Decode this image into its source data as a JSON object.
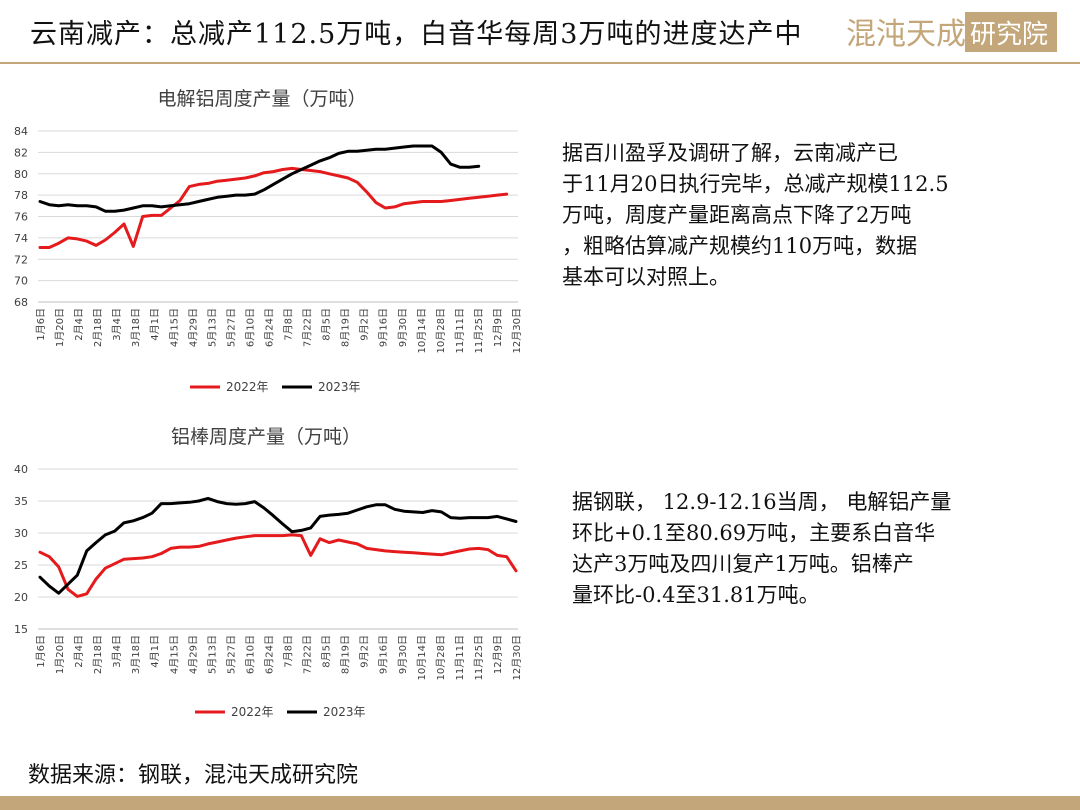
{
  "header": {
    "title": "云南减产：总减产112.5万吨，白音华每周3万吨的进度达产中",
    "logo_text": "混沌天成研究院"
  },
  "notes": {
    "note1": [
      "据百川盈孚及调研了解，云南减产已",
      "于11月20日执行完毕，总减产规模112.5",
      "万吨，周度产量距离高点下降了2万吨",
      "，粗略估算减产规模约110万吨，数据",
      "基本可以对照上。"
    ],
    "note2": [
      "据钢联， 12.9-12.16当周， 电解铝产量",
      "环比+0.1至80.69万吨，主要系白音华",
      "达产3万吨及四川复产1万吨。铝棒产",
      "量环比-0.4至31.81万吨。"
    ]
  },
  "source": "数据来源：钢联，混沌天成研究院",
  "colors": {
    "accent": "#c3a679",
    "series_2022": "#e41a1c",
    "series_2023": "#000000",
    "grid": "#d9d9d9"
  },
  "chart_data": [
    {
      "type": "line",
      "title": "电解铝周度产量（万吨）",
      "ylim": [
        68,
        84
      ],
      "yticks": [
        68,
        70,
        72,
        74,
        76,
        78,
        80,
        82,
        84
      ],
      "xticks": [
        "1月6日",
        "1月20日",
        "2月4日",
        "2月18日",
        "3月4日",
        "3月18日",
        "4月1日",
        "4月15日",
        "4月29日",
        "5月13日",
        "5月27日",
        "6月10日",
        "6月24日",
        "7月8日",
        "7月22日",
        "8月5日",
        "8月19日",
        "9月2日",
        "9月16日",
        "9月30日",
        "10月14日",
        "10月28日",
        "11月11日",
        "11月25日",
        "12月9日",
        "12月30日"
      ],
      "legend": "bottom",
      "grid": true,
      "series": [
        {
          "name": "2022年",
          "color": "#e41a1c",
          "values": [
            73.1,
            73.1,
            73.5,
            74.0,
            73.9,
            73.7,
            73.3,
            73.8,
            74.5,
            75.3,
            73.2,
            76.0,
            76.1,
            76.1,
            76.8,
            77.5,
            78.8,
            79.0,
            79.1,
            79.3,
            79.4,
            79.5,
            79.6,
            79.8,
            80.1,
            80.2,
            80.4,
            80.5,
            80.4,
            80.3,
            80.2,
            80.0,
            79.8,
            79.6,
            79.2,
            78.3,
            77.3,
            76.8,
            76.9,
            77.2,
            77.3,
            77.4,
            77.4,
            77.4,
            77.5,
            77.6,
            77.7,
            77.8,
            77.9,
            78.0,
            78.1
          ]
        },
        {
          "name": "2023年",
          "color": "#000000",
          "values": [
            77.4,
            77.1,
            77.0,
            77.1,
            77.0,
            77.0,
            76.9,
            76.5,
            76.5,
            76.6,
            76.8,
            77.0,
            77.0,
            76.9,
            77.0,
            77.1,
            77.2,
            77.4,
            77.6,
            77.8,
            77.9,
            78.0,
            78.0,
            78.1,
            78.5,
            79.0,
            79.5,
            80.0,
            80.4,
            80.8,
            81.2,
            81.5,
            81.9,
            82.1,
            82.1,
            82.2,
            82.3,
            82.3,
            82.4,
            82.5,
            82.6,
            82.6,
            82.6,
            82.0,
            80.9,
            80.6,
            80.6,
            80.7
          ]
        }
      ]
    },
    {
      "type": "line",
      "title": "铝棒周度产量（万吨）",
      "ylim": [
        15,
        40
      ],
      "yticks": [
        15,
        20,
        25,
        30,
        35,
        40
      ],
      "xticks": [
        "1月6日",
        "1月20日",
        "2月4日",
        "2月18日",
        "3月4日",
        "3月18日",
        "4月1日",
        "4月15日",
        "4月29日",
        "5月13日",
        "5月27日",
        "6月10日",
        "6月24日",
        "7月8日",
        "7月22日",
        "8月5日",
        "8月19日",
        "9月2日",
        "9月16日",
        "9月30日",
        "10月14日",
        "10月28日",
        "11月11日",
        "11月25日",
        "12月9日",
        "12月30日"
      ],
      "legend": "bottom",
      "grid": true,
      "series": [
        {
          "name": "2022年",
          "color": "#e41a1c",
          "values": [
            27.0,
            26.3,
            24.7,
            21.2,
            20.1,
            20.5,
            22.8,
            24.5,
            25.2,
            25.9,
            26.0,
            26.1,
            26.3,
            26.8,
            27.6,
            27.8,
            27.8,
            27.9,
            28.3,
            28.6,
            28.9,
            29.2,
            29.4,
            29.6,
            29.6,
            29.6,
            29.6,
            29.7,
            29.6,
            26.5,
            29.1,
            28.5,
            28.9,
            28.6,
            28.3,
            27.6,
            27.4,
            27.2,
            27.1,
            27.0,
            26.9,
            26.8,
            26.7,
            26.6,
            26.9,
            27.2,
            27.5,
            27.6,
            27.4,
            26.5,
            26.3,
            24.1
          ]
        },
        {
          "name": "2023年",
          "color": "#000000",
          "values": [
            23.1,
            21.7,
            20.6,
            22.0,
            23.4,
            27.2,
            28.5,
            29.7,
            30.3,
            31.6,
            31.9,
            32.4,
            33.1,
            34.6,
            34.6,
            34.7,
            34.8,
            35.0,
            35.4,
            34.9,
            34.6,
            34.5,
            34.6,
            34.9,
            33.9,
            32.7,
            31.4,
            30.2,
            30.4,
            30.8,
            32.6,
            32.8,
            32.9,
            33.1,
            33.6,
            34.1,
            34.4,
            34.4,
            33.7,
            33.4,
            33.3,
            33.2,
            33.5,
            33.3,
            32.4,
            32.3,
            32.4,
            32.4,
            32.4,
            32.6,
            32.2,
            31.8
          ]
        }
      ]
    }
  ]
}
